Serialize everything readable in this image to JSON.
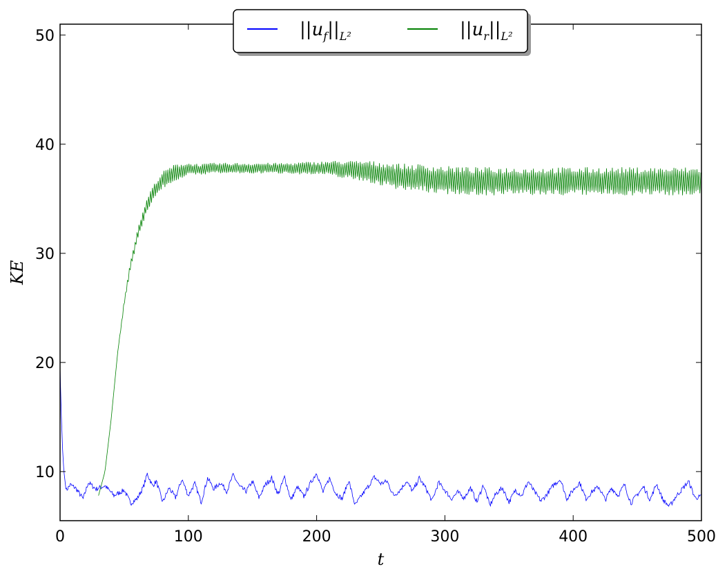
{
  "chart_data": {
    "type": "line",
    "xlabel": "t",
    "ylabel": "KE",
    "xlim": [
      0,
      500
    ],
    "ylim": [
      5.5,
      51
    ],
    "xticks": [
      0,
      100,
      200,
      300,
      400,
      500
    ],
    "xtick_labels": [
      "0",
      "100",
      "200",
      "300",
      "400",
      "500"
    ],
    "yticks": [
      10,
      20,
      30,
      40,
      50
    ],
    "ytick_labels": [
      "10",
      "20",
      "30",
      "40",
      "50"
    ],
    "grid": false,
    "legend_placement": "top-center",
    "series": [
      {
        "name": "||u_f||_{L^2}",
        "legend_main": "||u",
        "legend_sub": "f",
        "legend_tail": "||",
        "legend_norm": "L²",
        "color": "#0000ff",
        "x": [
          0,
          1,
          2,
          3,
          4,
          5,
          8,
          12,
          18,
          22,
          28,
          35,
          42,
          50,
          55,
          60,
          65,
          68,
          72,
          75,
          80,
          85,
          90,
          95,
          100,
          105,
          110,
          115,
          120,
          125,
          130,
          135,
          140,
          145,
          150,
          155,
          160,
          165,
          170,
          175,
          180,
          185,
          190,
          195,
          200,
          205,
          210,
          215,
          220,
          225,
          230,
          235,
          240,
          245,
          250,
          255,
          260,
          265,
          270,
          275,
          280,
          285,
          290,
          295,
          300,
          305,
          310,
          315,
          320,
          325,
          330,
          335,
          340,
          345,
          350,
          355,
          360,
          365,
          370,
          375,
          380,
          385,
          390,
          395,
          400,
          405,
          410,
          415,
          420,
          425,
          430,
          435,
          440,
          445,
          450,
          455,
          460,
          465,
          470,
          475,
          480,
          485,
          490,
          495,
          500
        ],
        "values": [
          19.5,
          15,
          12,
          10,
          9,
          8.3,
          8.8,
          8.5,
          7.5,
          9,
          8.4,
          8.7,
          7.8,
          8.3,
          7.1,
          7.5,
          8.6,
          9.8,
          8.7,
          9.1,
          7.2,
          8.5,
          7.6,
          9.3,
          7.8,
          8.9,
          7.2,
          9.4,
          8.4,
          9.0,
          8.2,
          9.7,
          8.6,
          8.2,
          9.1,
          7.6,
          8.8,
          9.4,
          7.9,
          9.5,
          7.4,
          8.6,
          7.7,
          8.9,
          9.9,
          8.1,
          9.4,
          8.0,
          7.5,
          9.2,
          6.9,
          7.8,
          8.6,
          9.5,
          8.9,
          9.1,
          7.8,
          8.3,
          9.1,
          8.2,
          9.4,
          8.5,
          7.3,
          9.0,
          8.3,
          7.5,
          8.1,
          7.6,
          8.5,
          7.2,
          8.8,
          6.9,
          8.0,
          8.5,
          7.2,
          8.3,
          7.8,
          9.1,
          8.1,
          7.3,
          8.0,
          8.8,
          9.3,
          7.5,
          8.3,
          9.0,
          7.5,
          8.2,
          8.6,
          7.4,
          8.5,
          7.8,
          8.8,
          7.1,
          7.9,
          8.6,
          7.4,
          8.9,
          7.4,
          6.8,
          7.7,
          8.4,
          9.1,
          7.6,
          7.7
        ]
      },
      {
        "name": "||u_r||_{L^2}",
        "legend_main": "||u",
        "legend_sub": "r",
        "legend_tail": "||",
        "legend_norm": "L²",
        "color": "#008000",
        "x": [
          30,
          35,
          40,
          45,
          50,
          55,
          60,
          65,
          70,
          75,
          80,
          85,
          90,
          95,
          100,
          110,
          120,
          130,
          140,
          150,
          160,
          170,
          180,
          190,
          200,
          210,
          220,
          230,
          240,
          250,
          260,
          270,
          280,
          290,
          300,
          310,
          320,
          330,
          340,
          350,
          360,
          370,
          380,
          390,
          400,
          410,
          420,
          430,
          440,
          450,
          460,
          470,
          480,
          490,
          500
        ],
        "values": [
          7.8,
          10,
          15,
          21,
          25.5,
          29,
          31.5,
          33.5,
          35,
          36,
          36.7,
          37.1,
          37.4,
          37.6,
          37.7,
          37.7,
          37.8,
          37.8,
          37.8,
          37.8,
          37.8,
          37.8,
          37.8,
          37.8,
          37.8,
          37.8,
          37.7,
          37.6,
          37.5,
          37.3,
          37.1,
          37.0,
          36.9,
          36.8,
          36.7,
          36.7,
          36.6,
          36.6,
          36.6,
          36.6,
          36.6,
          36.6,
          36.6,
          36.6,
          36.6,
          36.6,
          36.6,
          36.6,
          36.6,
          36.6,
          36.6,
          36.6,
          36.6,
          36.6,
          36.6
        ],
        "oscillation_amplitude": [
          0,
          0,
          0,
          0,
          0.3,
          0.4,
          0.5,
          0.6,
          0.7,
          0.7,
          0.8,
          0.8,
          0.8,
          0.7,
          0.6,
          0.5,
          0.5,
          0.5,
          0.5,
          0.5,
          0.5,
          0.5,
          0.5,
          0.6,
          0.6,
          0.7,
          0.8,
          0.9,
          1.0,
          1.1,
          1.2,
          1.2,
          1.3,
          1.3,
          1.3,
          1.3,
          1.3,
          1.3,
          1.3,
          1.3,
          1.3,
          1.3,
          1.3,
          1.3,
          1.3,
          1.3,
          1.3,
          1.3,
          1.3,
          1.3,
          1.3,
          1.3,
          1.3,
          1.3,
          1.3
        ]
      }
    ]
  }
}
